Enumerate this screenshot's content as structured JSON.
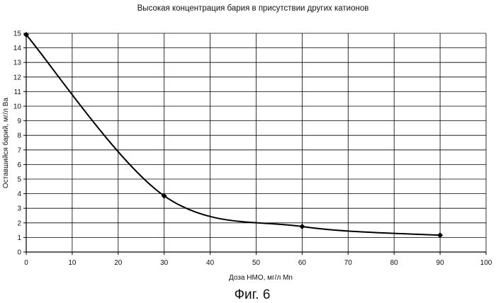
{
  "chart_data": {
    "type": "line",
    "title": "Высокая концентрация бария в присутствии других катионов",
    "xlabel": "Доза НМО, мг/л Mn",
    "ylabel": "Оставшийся барий, мг/л Ba",
    "xlim": [
      0,
      100
    ],
    "ylim": [
      0,
      15
    ],
    "x_ticks": [
      0,
      10,
      20,
      30,
      40,
      50,
      60,
      70,
      80,
      90,
      100
    ],
    "y_ticks": [
      0,
      1,
      2,
      3,
      4,
      5,
      6,
      7,
      8,
      9,
      10,
      11,
      12,
      13,
      14,
      15
    ],
    "grid": true,
    "series": [
      {
        "x": [
          0,
          30,
          60,
          90
        ],
        "y": [
          14.9,
          3.85,
          1.75,
          1.15
        ],
        "smooth": true,
        "marker": "diamond",
        "color": "#000000"
      }
    ]
  },
  "figure_caption": "Фиг. 6"
}
